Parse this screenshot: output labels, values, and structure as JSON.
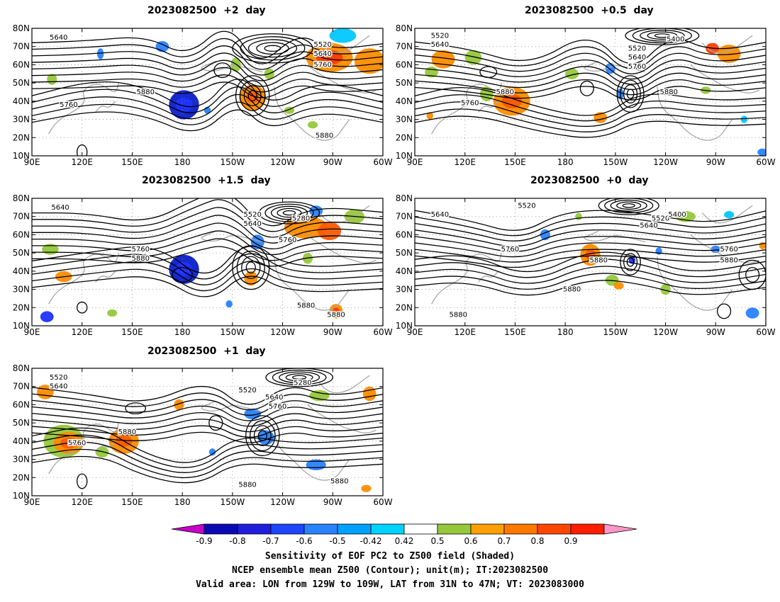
{
  "panels": [
    {
      "id": "p2",
      "title": "2023082500  +2  day",
      "contour_labels": [
        {
          "text": "5640",
          "lon": 106,
          "lat": 75
        },
        {
          "text": "5520",
          "lon": 264,
          "lat": 71
        },
        {
          "text": "5640",
          "lon": 264,
          "lat": 66
        },
        {
          "text": "5760",
          "lon": 264,
          "lat": 60
        },
        {
          "text": "5880",
          "lon": 158,
          "lat": 45
        },
        {
          "text": "5760",
          "lon": 112,
          "lat": 38
        },
        {
          "text": "5880",
          "lon": 265,
          "lat": 21
        }
      ],
      "shading": [
        {
          "lon": 181,
          "lat": 38,
          "rx": 9,
          "ry": 8,
          "color": "#0a1ec8"
        },
        {
          "lon": 181,
          "lat": 38,
          "rx": 5,
          "ry": 4,
          "color": "#1e32ff"
        },
        {
          "lon": 222,
          "lat": 42,
          "rx": 8,
          "ry": 7,
          "color": "#ff8c00"
        },
        {
          "lon": 222,
          "lat": 42,
          "rx": 4,
          "ry": 3,
          "color": "#ff5a00"
        },
        {
          "lon": 268,
          "lat": 64,
          "rx": 14,
          "ry": 8,
          "color": "#ff8c00"
        },
        {
          "lon": 268,
          "lat": 64,
          "rx": 8,
          "ry": 4,
          "color": "#ff3c00"
        },
        {
          "lon": 292,
          "lat": 62,
          "rx": 9,
          "ry": 7,
          "color": "#ff8c00"
        },
        {
          "lon": 276,
          "lat": 76,
          "rx": 8,
          "ry": 4,
          "color": "#00c8ff"
        },
        {
          "lon": 168,
          "lat": 70,
          "rx": 4,
          "ry": 3,
          "color": "#2882ff"
        },
        {
          "lon": 131,
          "lat": 66,
          "rx": 2,
          "ry": 3,
          "color": "#2882ff"
        },
        {
          "lon": 195,
          "lat": 35,
          "rx": 2,
          "ry": 2,
          "color": "#2882ff"
        },
        {
          "lon": 212,
          "lat": 60,
          "rx": 3,
          "ry": 4,
          "color": "#96c83c"
        },
        {
          "lon": 102,
          "lat": 52,
          "rx": 3,
          "ry": 3,
          "color": "#96c83c"
        },
        {
          "lon": 258,
          "lat": 27,
          "rx": 3,
          "ry": 2,
          "color": "#96c83c"
        },
        {
          "lon": 244,
          "lat": 35,
          "rx": 3,
          "ry": 2,
          "color": "#96c83c"
        },
        {
          "lon": 232,
          "lat": 55,
          "rx": 3,
          "ry": 3,
          "color": "#96c83c"
        }
      ]
    },
    {
      "id": "p05",
      "title": "2023082500  +0.5  day",
      "contour_labels": [
        {
          "text": "5520",
          "lon": 105,
          "lat": 76
        },
        {
          "text": "5640",
          "lon": 105,
          "lat": 71
        },
        {
          "text": "5400",
          "lon": 246,
          "lat": 74
        },
        {
          "text": "5520",
          "lon": 223,
          "lat": 69
        },
        {
          "text": "5640",
          "lon": 223,
          "lat": 64
        },
        {
          "text": "5760",
          "lon": 223,
          "lat": 59
        },
        {
          "text": "5880",
          "lon": 144,
          "lat": 45
        },
        {
          "text": "5760",
          "lon": 123,
          "lat": 39
        },
        {
          "text": "5880",
          "lon": 242,
          "lat": 45
        }
      ],
      "shading": [
        {
          "lon": 148,
          "lat": 40,
          "rx": 11,
          "ry": 8,
          "color": "#ff8c00"
        },
        {
          "lon": 148,
          "lat": 40,
          "rx": 6,
          "ry": 4,
          "color": "#ff5a00"
        },
        {
          "lon": 133,
          "lat": 44,
          "rx": 4,
          "ry": 4,
          "color": "#96c83c"
        },
        {
          "lon": 107,
          "lat": 63,
          "rx": 7,
          "ry": 5,
          "color": "#ff8c00"
        },
        {
          "lon": 125,
          "lat": 64,
          "rx": 5,
          "ry": 4,
          "color": "#96c83c"
        },
        {
          "lon": 100,
          "lat": 56,
          "rx": 4,
          "ry": 3,
          "color": "#96c83c"
        },
        {
          "lon": 278,
          "lat": 66,
          "rx": 7,
          "ry": 5,
          "color": "#ff8c00"
        },
        {
          "lon": 268,
          "lat": 69,
          "rx": 4,
          "ry": 3,
          "color": "#ff3c00"
        },
        {
          "lon": 184,
          "lat": 55,
          "rx": 4,
          "ry": 3,
          "color": "#96c83c"
        },
        {
          "lon": 201,
          "lat": 31,
          "rx": 4,
          "ry": 3,
          "color": "#ff8c00"
        },
        {
          "lon": 213,
          "lat": 44,
          "rx": 2,
          "ry": 3,
          "color": "#2882ff"
        },
        {
          "lon": 207,
          "lat": 58,
          "rx": 3,
          "ry": 3,
          "color": "#2882ff"
        },
        {
          "lon": 99,
          "lat": 32,
          "rx": 2,
          "ry": 2,
          "color": "#ff8c00"
        },
        {
          "lon": 298,
          "lat": 12,
          "rx": 3,
          "ry": 2,
          "color": "#2882ff"
        },
        {
          "lon": 287,
          "lat": 30,
          "rx": 2,
          "ry": 2,
          "color": "#00c8ff"
        },
        {
          "lon": 264,
          "lat": 46,
          "rx": 3,
          "ry": 2,
          "color": "#96c83c"
        }
      ]
    },
    {
      "id": "p15",
      "title": "2023082500  +1.5  day",
      "contour_labels": [
        {
          "text": "5640",
          "lon": 107,
          "lat": 75
        },
        {
          "text": "5520",
          "lon": 222,
          "lat": 71
        },
        {
          "text": "5640",
          "lon": 222,
          "lat": 66
        },
        {
          "text": "5280",
          "lon": 251,
          "lat": 69
        },
        {
          "text": "5760",
          "lon": 243,
          "lat": 57
        },
        {
          "text": "5760",
          "lon": 155,
          "lat": 52
        },
        {
          "text": "5880",
          "lon": 155,
          "lat": 47
        },
        {
          "text": "5880",
          "lon": 254,
          "lat": 21
        },
        {
          "text": "5880",
          "lon": 272,
          "lat": 16
        }
      ],
      "shading": [
        {
          "lon": 181,
          "lat": 41,
          "rx": 9,
          "ry": 8,
          "color": "#0a1ec8"
        },
        {
          "lon": 181,
          "lat": 41,
          "rx": 5,
          "ry": 4,
          "color": "#1e32ff"
        },
        {
          "lon": 254,
          "lat": 64,
          "rx": 13,
          "ry": 6,
          "color": "#ff8c00"
        },
        {
          "lon": 268,
          "lat": 62,
          "rx": 7,
          "ry": 5,
          "color": "#ff5a00"
        },
        {
          "lon": 283,
          "lat": 70,
          "rx": 6,
          "ry": 4,
          "color": "#96c83c"
        },
        {
          "lon": 260,
          "lat": 73,
          "rx": 4,
          "ry": 3,
          "color": "#2882ff"
        },
        {
          "lon": 225,
          "lat": 56,
          "rx": 4,
          "ry": 4,
          "color": "#2882ff"
        },
        {
          "lon": 221,
          "lat": 36,
          "rx": 4,
          "ry": 4,
          "color": "#ff8c00"
        },
        {
          "lon": 109,
          "lat": 37,
          "rx": 5,
          "ry": 3,
          "color": "#ff8c00"
        },
        {
          "lon": 101,
          "lat": 52,
          "rx": 5,
          "ry": 3,
          "color": "#96c83c"
        },
        {
          "lon": 99,
          "lat": 15,
          "rx": 4,
          "ry": 3,
          "color": "#1e32ff"
        },
        {
          "lon": 272,
          "lat": 18,
          "rx": 4,
          "ry": 4,
          "color": "#ff8c00"
        },
        {
          "lon": 272,
          "lat": 18,
          "rx": 2,
          "ry": 2,
          "color": "#ff3c00"
        },
        {
          "lon": 255,
          "lat": 47,
          "rx": 3,
          "ry": 3,
          "color": "#96c83c"
        },
        {
          "lon": 138,
          "lat": 17,
          "rx": 3,
          "ry": 2,
          "color": "#96c83c"
        },
        {
          "lon": 208,
          "lat": 22,
          "rx": 2,
          "ry": 2,
          "color": "#2882ff"
        }
      ]
    },
    {
      "id": "p0",
      "title": "2023082500  +0  day",
      "contour_labels": [
        {
          "text": "5520",
          "lon": 157,
          "lat": 76
        },
        {
          "text": "5640",
          "lon": 105,
          "lat": 71
        },
        {
          "text": "5520",
          "lon": 237,
          "lat": 69
        },
        {
          "text": "5400",
          "lon": 247,
          "lat": 71
        },
        {
          "text": "5640",
          "lon": 230,
          "lat": 65
        },
        {
          "text": "5760",
          "lon": 147,
          "lat": 52
        },
        {
          "text": "5760",
          "lon": 278,
          "lat": 52
        },
        {
          "text": "5880",
          "lon": 200,
          "lat": 46
        },
        {
          "text": "5880",
          "lon": 278,
          "lat": 46
        },
        {
          "text": "5880",
          "lon": 184,
          "lat": 30
        },
        {
          "text": "5880",
          "lon": 116,
          "lat": 16
        }
      ],
      "shading": [
        {
          "lon": 195,
          "lat": 49,
          "rx": 6,
          "ry": 6,
          "color": "#ff8c00"
        },
        {
          "lon": 195,
          "lat": 49,
          "rx": 3,
          "ry": 3,
          "color": "#ff5a00"
        },
        {
          "lon": 220,
          "lat": 46,
          "rx": 2,
          "ry": 2,
          "color": "#1e32ff"
        },
        {
          "lon": 208,
          "lat": 35,
          "rx": 4,
          "ry": 3,
          "color": "#96c83c"
        },
        {
          "lon": 240,
          "lat": 30,
          "rx": 3,
          "ry": 3,
          "color": "#96c83c"
        },
        {
          "lon": 292,
          "lat": 17,
          "rx": 4,
          "ry": 3,
          "color": "#2882ff"
        },
        {
          "lon": 252,
          "lat": 70,
          "rx": 6,
          "ry": 3,
          "color": "#96c83c"
        },
        {
          "lon": 278,
          "lat": 71,
          "rx": 3,
          "ry": 2,
          "color": "#00c8ff"
        },
        {
          "lon": 168,
          "lat": 60,
          "rx": 3,
          "ry": 3,
          "color": "#2882ff"
        },
        {
          "lon": 270,
          "lat": 52,
          "rx": 3,
          "ry": 2,
          "color": "#2882ff"
        },
        {
          "lon": 298,
          "lat": 54,
          "rx": 2,
          "ry": 2,
          "color": "#ff8c00"
        },
        {
          "lon": 212,
          "lat": 32,
          "rx": 3,
          "ry": 2,
          "color": "#ff8c00"
        },
        {
          "lon": 188,
          "lat": 70,
          "rx": 2,
          "ry": 2,
          "color": "#96c83c"
        },
        {
          "lon": 236,
          "lat": 51,
          "rx": 2,
          "ry": 2,
          "color": "#2882ff"
        }
      ]
    },
    {
      "id": "p1",
      "title": "2023082500  +1  day",
      "contour_labels": [
        {
          "text": "5520",
          "lon": 106,
          "lat": 75
        },
        {
          "text": "5640",
          "lon": 106,
          "lat": 70
        },
        {
          "text": "5520",
          "lon": 219,
          "lat": 68
        },
        {
          "text": "5640",
          "lon": 235,
          "lat": 64
        },
        {
          "text": "5760",
          "lon": 237,
          "lat": 59
        },
        {
          "text": "5280",
          "lon": 252,
          "lat": 72
        },
        {
          "text": "5880",
          "lon": 147,
          "lat": 45
        },
        {
          "text": "5760",
          "lon": 117,
          "lat": 39
        },
        {
          "text": "5880",
          "lon": 219,
          "lat": 16
        },
        {
          "text": "5880",
          "lon": 274,
          "lat": 18
        }
      ],
      "shading": [
        {
          "lon": 109,
          "lat": 40,
          "rx": 12,
          "ry": 9,
          "color": "#96c83c"
        },
        {
          "lon": 112,
          "lat": 39,
          "rx": 9,
          "ry": 6,
          "color": "#ff8c00"
        },
        {
          "lon": 112,
          "lat": 39,
          "rx": 5,
          "ry": 3,
          "color": "#ff5a00"
        },
        {
          "lon": 145,
          "lat": 40,
          "rx": 9,
          "ry": 7,
          "color": "#ff8c00"
        },
        {
          "lon": 145,
          "lat": 40,
          "rx": 5,
          "ry": 3,
          "color": "#ff5a00"
        },
        {
          "lon": 98,
          "lat": 67,
          "rx": 5,
          "ry": 4,
          "color": "#ff8c00"
        },
        {
          "lon": 132,
          "lat": 34,
          "rx": 4,
          "ry": 3,
          "color": "#96c83c"
        },
        {
          "lon": 230,
          "lat": 42,
          "rx": 5,
          "ry": 4,
          "color": "#2882ff"
        },
        {
          "lon": 222,
          "lat": 55,
          "rx": 5,
          "ry": 3,
          "color": "#2882ff"
        },
        {
          "lon": 260,
          "lat": 27,
          "rx": 6,
          "ry": 3,
          "color": "#2882ff"
        },
        {
          "lon": 262,
          "lat": 65,
          "rx": 6,
          "ry": 3,
          "color": "#96c83c"
        },
        {
          "lon": 292,
          "lat": 66,
          "rx": 4,
          "ry": 4,
          "color": "#ff8c00"
        },
        {
          "lon": 178,
          "lat": 60,
          "rx": 3,
          "ry": 3,
          "color": "#ff8c00"
        },
        {
          "lon": 198,
          "lat": 34,
          "rx": 2,
          "ry": 2,
          "color": "#2882ff"
        },
        {
          "lon": 290,
          "lat": 14,
          "rx": 3,
          "ry": 2,
          "color": "#ff8c00"
        }
      ]
    }
  ],
  "axes": {
    "lon_ticks": [
      "90E",
      "120E",
      "150E",
      "180",
      "150W",
      "120W",
      "90W",
      "60W"
    ],
    "lat_ticks": [
      "10N",
      "20N",
      "30N",
      "40N",
      "50N",
      "60N",
      "70N",
      "80N"
    ],
    "lon_range": [
      90,
      300
    ],
    "lat_range": [
      10,
      80
    ]
  },
  "colorbar": {
    "levels": [
      "-0.9",
      "-0.8",
      "-0.7",
      "-0.6",
      "-0.5",
      "-0.42",
      "0.42",
      "0.5",
      "0.6",
      "0.7",
      "0.8",
      "0.9"
    ],
    "colors": [
      "#c800c8",
      "#0a0ab4",
      "#1e1edc",
      "#1e46ff",
      "#2882ff",
      "#00a0ff",
      "#00d2ff",
      "#ffffff",
      "#96c83c",
      "#ffa000",
      "#ff7800",
      "#ff4600",
      "#ff1e00",
      "#ff96c8"
    ]
  },
  "captions": {
    "line1": "Sensitivity of EOF PC2 to Z500 field (Shaded)",
    "line2": "NCEP ensemble mean Z500 (Contour); unit(m); IT:2023082500",
    "line3": "Valid area: LON from 129W to 109W, LAT from 31N to 47N; VT: 2023083000"
  }
}
